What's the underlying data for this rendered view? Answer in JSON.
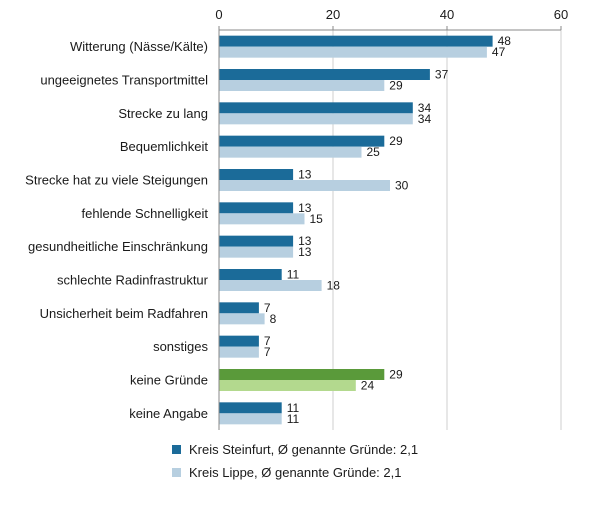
{
  "chart_data": {
    "type": "bar",
    "orientation": "horizontal",
    "xlim": [
      0,
      60
    ],
    "ticks": [
      "0",
      "20",
      "40",
      "60"
    ],
    "grid": true,
    "legend_position": "bottom",
    "categories": [
      "Witterung (Nässe/Kälte)",
      "ungeeignetes Transportmittel",
      "Strecke zu lang",
      "Bequemlichkeit",
      "Strecke hat zu viele Steigungen",
      "fehlende Schnelligkeit",
      "gesundheitliche Einschränkung",
      "schlechte Radinfrastruktur",
      "Unsicherheit beim Radfahren",
      "sonstiges",
      "keine Gründe",
      "keine Angabe"
    ],
    "series": [
      {
        "name": "Kreis Steinfurt, Ø genannte Gründe: 2,1",
        "color": "#1b6b99",
        "values": [
          48,
          37,
          34,
          29,
          13,
          13,
          13,
          11,
          7,
          7,
          29,
          11
        ]
      },
      {
        "name": "Kreis Lippe, Ø genannte Gründe: 2,1",
        "color": "#b7cfe0",
        "values": [
          47,
          29,
          34,
          25,
          30,
          15,
          13,
          18,
          8,
          7,
          24,
          11
        ]
      }
    ],
    "highlight": {
      "category_index": 10,
      "colors": [
        "#5a9a3a",
        "#b3d98e"
      ]
    }
  }
}
